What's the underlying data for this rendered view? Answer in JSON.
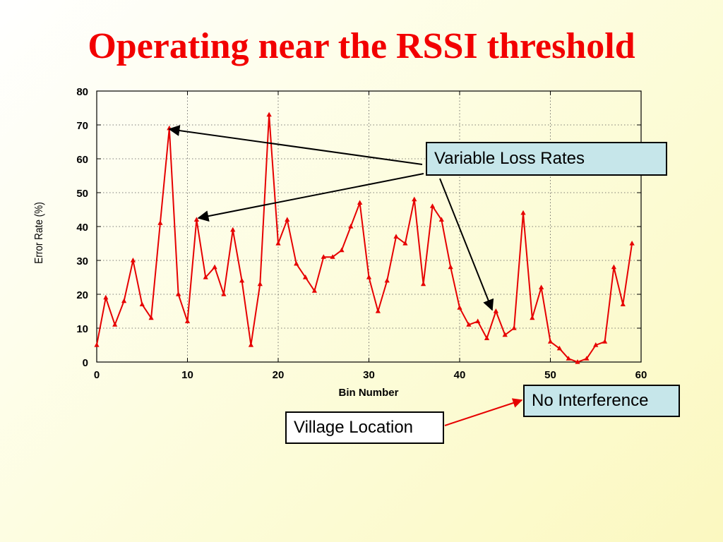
{
  "slide": {
    "title": "Operating near the RSSI threshold"
  },
  "callouts": {
    "variable_loss": "Variable Loss Rates",
    "no_interference": "No Interference",
    "village_location": "Village Location"
  },
  "colors": {
    "title": "#f20000",
    "series": "#e60000",
    "callout_fill": "#c6e6ea"
  },
  "chart_data": {
    "type": "line",
    "title": "",
    "xlabel": "Bin Number",
    "ylabel": "Error Rate (%)",
    "xlim": [
      0,
      60
    ],
    "ylim": [
      0,
      80
    ],
    "xticks": [
      0,
      10,
      20,
      30,
      40,
      50,
      60
    ],
    "yticks": [
      0,
      10,
      20,
      30,
      40,
      50,
      60,
      70,
      80
    ],
    "grid": true,
    "marker": "triangle",
    "series": [
      {
        "x": [
          0,
          1,
          2,
          3,
          4,
          5,
          6,
          7,
          8,
          9,
          10,
          11,
          12,
          13,
          14,
          15,
          16,
          17,
          18,
          19,
          20,
          21,
          22,
          23,
          24,
          25,
          26,
          27,
          28,
          29,
          30,
          31,
          32,
          33,
          34,
          35,
          36,
          37,
          38,
          39,
          40,
          41,
          42,
          43,
          44,
          45,
          46,
          47,
          48,
          49,
          50,
          51,
          52,
          53,
          54,
          55,
          56,
          57,
          58,
          59
        ],
        "values": [
          5,
          19,
          11,
          18,
          30,
          17,
          13,
          41,
          69,
          20,
          12,
          42,
          25,
          28,
          20,
          39,
          24,
          5,
          23,
          73,
          35,
          42,
          29,
          25,
          21,
          31,
          31,
          33,
          40,
          47,
          25,
          15,
          24,
          37,
          35,
          48,
          23,
          46,
          42,
          28,
          16,
          11,
          12,
          7,
          15,
          8,
          10,
          44,
          13,
          22,
          6,
          4,
          1,
          0,
          1,
          5,
          6,
          28,
          17,
          35
        ]
      }
    ]
  }
}
